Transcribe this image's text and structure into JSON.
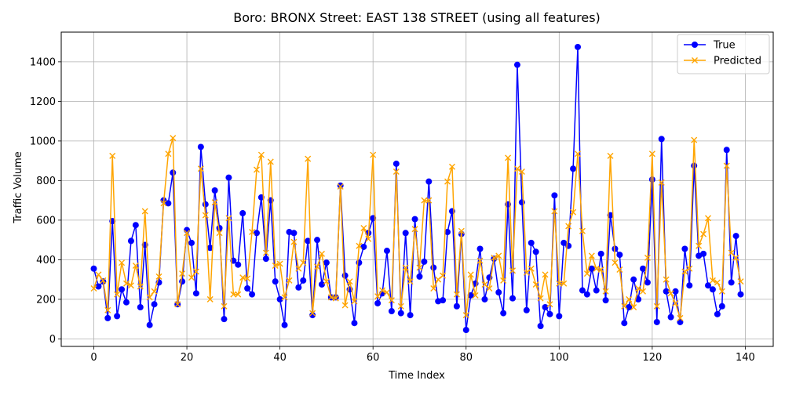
{
  "chart_data": {
    "type": "line",
    "title": "Boro: BRONX Street: EAST 138 STREET (using all features)",
    "xlabel": "Time Index",
    "ylabel": "Traffic Volume",
    "xlim": [
      -7,
      146
    ],
    "ylim": [
      -38,
      1550
    ],
    "xticks": [
      0,
      20,
      40,
      60,
      80,
      100,
      120,
      140
    ],
    "yticks": [
      0,
      200,
      400,
      600,
      800,
      1000,
      1200,
      1400
    ],
    "grid": true,
    "legend_position": "top-right",
    "series": [
      {
        "name": "True",
        "color": "#0000ff",
        "marker": "circle",
        "values": [
          355,
          265,
          290,
          105,
          595,
          115,
          250,
          185,
          495,
          575,
          160,
          475,
          70,
          175,
          285,
          700,
          685,
          840,
          175,
          290,
          550,
          485,
          230,
          970,
          680,
          460,
          750,
          560,
          100,
          815,
          395,
          375,
          635,
          255,
          225,
          535,
          715,
          405,
          700,
          290,
          200,
          70,
          540,
          535,
          260,
          295,
          495,
          120,
          500,
          275,
          385,
          210,
          210,
          775,
          320,
          250,
          80,
          385,
          465,
          535,
          610,
          180,
          230,
          445,
          140,
          885,
          130,
          535,
          120,
          605,
          315,
          390,
          795,
          360,
          190,
          195,
          540,
          645,
          165,
          530,
          45,
          220,
          280,
          455,
          200,
          310,
          405,
          235,
          130,
          680,
          205,
          1385,
          690,
          145,
          485,
          440,
          65,
          160,
          125,
          725,
          115,
          485,
          470,
          860,
          1475,
          245,
          225,
          355,
          245,
          430,
          195,
          625,
          455,
          425,
          80,
          160,
          300,
          200,
          355,
          285,
          805,
          85,
          1010,
          240,
          110,
          240,
          85,
          455,
          270,
          875,
          420,
          430,
          270,
          250,
          125,
          165,
          955,
          285,
          520,
          225
        ]
      },
      {
        "name": "Predicted",
        "color": "#ffa500",
        "marker": "x",
        "values": [
          255,
          325,
          295,
          145,
          925,
          225,
          385,
          280,
          270,
          370,
          265,
          645,
          210,
          240,
          315,
          685,
          935,
          1015,
          175,
          330,
          535,
          310,
          340,
          860,
          625,
          200,
          690,
          535,
          165,
          610,
          225,
          225,
          310,
          305,
          540,
          855,
          930,
          435,
          895,
          370,
          380,
          210,
          295,
          490,
          355,
          385,
          910,
          130,
          365,
          430,
          290,
          210,
          205,
          770,
          170,
          290,
          190,
          470,
          560,
          505,
          930,
          215,
          245,
          235,
          195,
          845,
          165,
          360,
          290,
          555,
          360,
          700,
          700,
          255,
          300,
          320,
          795,
          870,
          225,
          545,
          120,
          325,
          220,
          395,
          275,
          255,
          410,
          420,
          295,
          915,
          345,
          860,
          845,
          335,
          355,
          275,
          205,
          325,
          175,
          645,
          280,
          280,
          570,
          640,
          935,
          545,
          330,
          420,
          355,
          350,
          240,
          925,
          385,
          350,
          165,
          200,
          160,
          255,
          240,
          410,
          935,
          165,
          790,
          300,
          230,
          180,
          105,
          340,
          355,
          1005,
          470,
          530,
          610,
          295,
          285,
          240,
          875,
          435,
          410,
          290
        ]
      }
    ]
  }
}
